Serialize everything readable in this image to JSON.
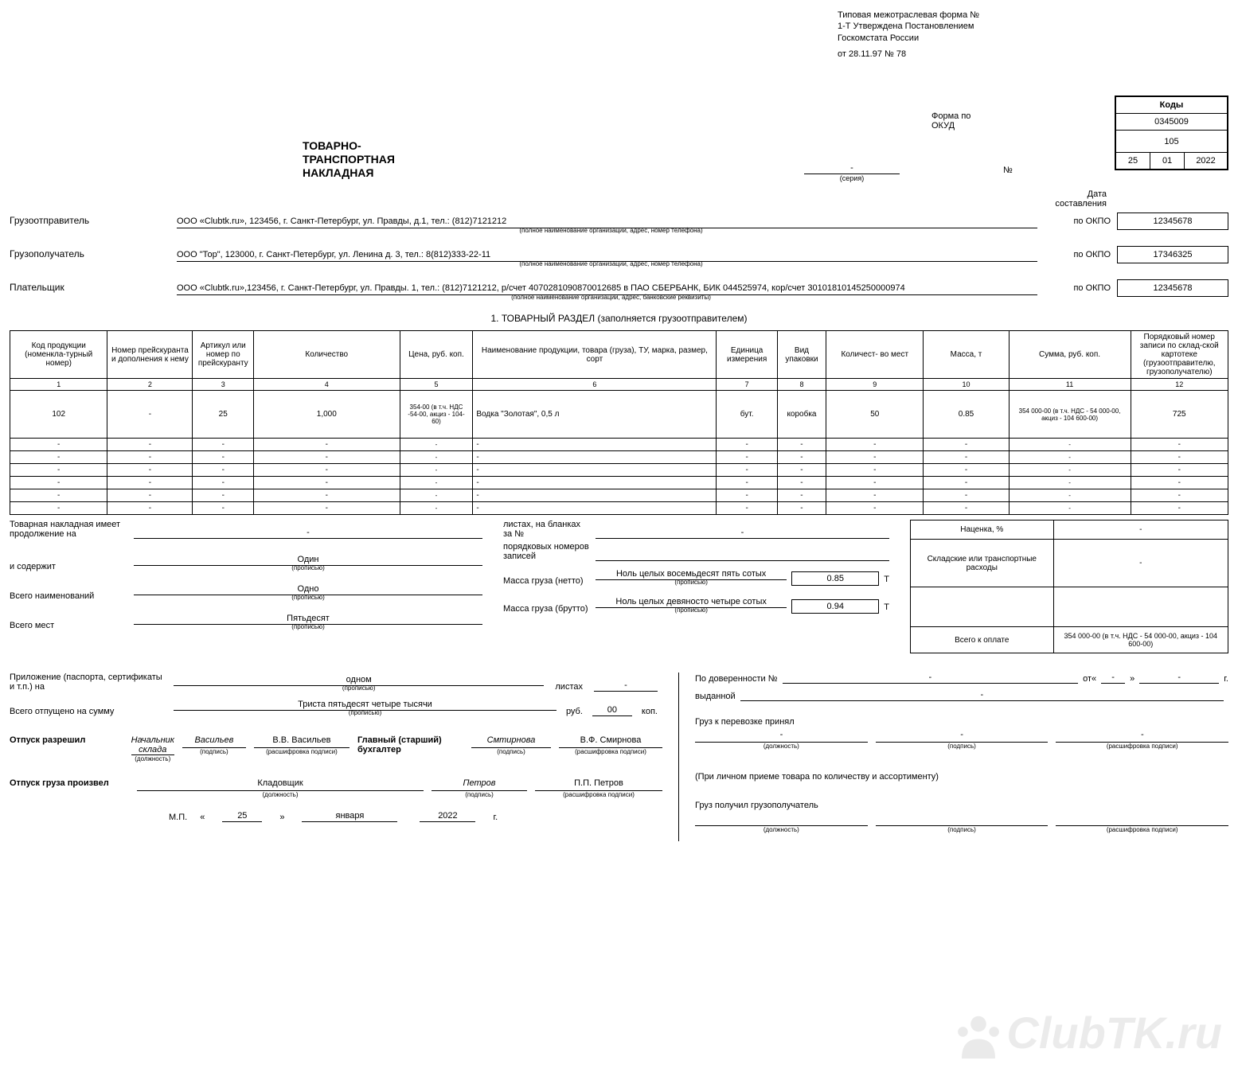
{
  "header": {
    "form_text": "Типовая межотраслевая форма № 1-Т Утверждена Постановлением Госкомстата России",
    "form_date": "от 28.11.97 № 78",
    "forma_label": "Форма по ОКУД",
    "number_label": "№",
    "series_caption": "(серия)",
    "date_label": "Дата составления",
    "codes_title": "Коды",
    "okud_code": "0345009",
    "doc_number": "105",
    "date_day": "25",
    "date_month": "01",
    "date_year": "2022"
  },
  "title": "ТОВАРНО-\nТРАНСПОРТНАЯ\nНАКЛАДНАЯ",
  "parties": {
    "sender_label": "Грузоотправитель",
    "sender_value": "ООО «Clubtk.ru», 123456, г. Санкт-Петербург, ул. Правды, д.1, тел.: (812)7121212",
    "sender_caption": "(полное наименование организации, адрес, номер телефона)",
    "sender_okpo": "12345678",
    "receiver_label": "Грузополучатель",
    "receiver_value": "ООО \"Тор\", 123000, г. Санкт-Петербург, ул. Ленина д. 3, тел.: 8(812)333-22-11",
    "receiver_caption": "(полное наименование организации, адрес, номер телефона)",
    "receiver_okpo": "17346325",
    "payer_label": "Плательщик",
    "payer_value": "ООО «Clubtk.ru»,123456, г. Санкт-Петербург, ул. Правды. 1, тел.: (812)7121212, р/счет 4070281090870012685 в ПАО СБЕРБАНК, БИК 044525974, кор/счет 30101810145250000974",
    "payer_caption": "(полное наименование организации, адрес, банковские реквизиты)",
    "payer_okpo": "12345678",
    "okpo_label": "по ОКПО"
  },
  "section1_title": "1. ТОВАРНЫЙ РАЗДЕЛ (заполняется грузоотправителем)",
  "table": {
    "columns": [
      "Код продукции (номенкла-турный номер)",
      "Номер прейскуранта и дополнения к нему",
      "Артикул или номер по прейскуранту",
      "Количество",
      "Цена, руб. коп.",
      "Наименование продукции, товара (груза), ТУ, марка, размер, сорт",
      "Единица измерения",
      "Вид упаковки",
      "Количест- во мест",
      "Масса, т",
      "Сумма, руб. коп.",
      "Порядковый номер записи по склад-ской картотеке (грузоотправителю, грузополучателю)"
    ],
    "col_nums": [
      "1",
      "2",
      "3",
      "4",
      "5",
      "6",
      "7",
      "8",
      "9",
      "10",
      "11",
      "12"
    ],
    "rows": [
      [
        "102",
        "-",
        "25",
        "1,000",
        "354-00 (в т.ч. НДС -54-00, акциз - 104-60)",
        "Водка \"Золотая\", 0,5 л",
        "бут.",
        "коробка",
        "50",
        "0.85",
        "354 000-00 (в т.ч. НДС - 54 000-00, акциз - 104 600-00)",
        "725"
      ],
      [
        "-",
        "-",
        "-",
        "-",
        "-",
        "-",
        "-",
        "-",
        "-",
        "-",
        "-",
        "-"
      ],
      [
        "-",
        "-",
        "-",
        "-",
        "-",
        "-",
        "-",
        "-",
        "-",
        "-",
        "-",
        "-"
      ],
      [
        "-",
        "-",
        "-",
        "-",
        "-",
        "-",
        "-",
        "-",
        "-",
        "-",
        "-",
        "-"
      ],
      [
        "-",
        "-",
        "-",
        "-",
        "-",
        "-",
        "-",
        "-",
        "-",
        "-",
        "-",
        "-"
      ],
      [
        "-",
        "-",
        "-",
        "-",
        "-",
        "-",
        "-",
        "-",
        "-",
        "-",
        "-",
        "-"
      ],
      [
        "-",
        "-",
        "-",
        "-",
        "-",
        "-",
        "-",
        "-",
        "-",
        "-",
        "-",
        "-"
      ]
    ],
    "col_widths": [
      "8%",
      "7%",
      "5%",
      "12%",
      "6%",
      "20%",
      "5%",
      "4%",
      "8%",
      "7%",
      "10%",
      "8%"
    ]
  },
  "footer": {
    "continuation_label": "Товарная накладная имеет продолжение на",
    "sheets_label": "листах, на бланках за №",
    "contains_label": "и содержит",
    "contains_value": "Один",
    "records_label": "порядковых номеров записей",
    "names_label": "Всего наименований",
    "names_value": "Одно",
    "places_label": "Всего мест",
    "places_value": "Пятьдесят",
    "propisyu": "(прописью)",
    "netto_label": "Масса груза (нетто)",
    "netto_words": "Ноль целых восемьдесят пять сотых",
    "netto_value": "0.85",
    "brutto_label": "Масса груза (брутто)",
    "brutto_words": "Ноль целых девяносто четыре сотых",
    "brutto_value": "0.94",
    "t_label": "Т",
    "markup_label": "Наценка, %",
    "markup_value": "-",
    "transport_label": "Складские или транспортные расходы",
    "transport_value": "-",
    "total_label": "Всего к оплате",
    "total_value": "354 000-00 (в т.ч. НДС - 54 000-00, акциз - 104 600-00)"
  },
  "appendix": {
    "appendix_label": "Приложение (паспорта, сертификаты и т.п.) на",
    "appendix_value": "одном",
    "sheets2": "листах",
    "released_label": "Всего отпущено на сумму",
    "released_value": "Триста пятьдесят четыре тысячи",
    "rub": "руб.",
    "kop_value": "00",
    "kop": "коп."
  },
  "signatures": {
    "permit_label": "Отпуск разрешил",
    "permit_position": "Начальник склада",
    "permit_sign": "Васильев",
    "permit_name": "В.В. Васильев",
    "accountant_label": "Главный (старший) бухгалтер",
    "accountant_sign": "Смтирнова",
    "accountant_name": "В.Ф. Смирнова",
    "released_label": "Отпуск груза произвел",
    "released_position": "Кладовщик",
    "released_sign": "Петров",
    "released_name": "П.П. Петров",
    "mp": "М.П.",
    "date_day": "25",
    "date_month": "января",
    "date_year": "2022",
    "year_suffix": "г.",
    "position_cap": "(должность)",
    "sign_cap": "(подпись)",
    "name_cap": "(расшифровка подписи)",
    "proxy_label": "По доверенности №",
    "proxy_from": "от",
    "issued_label": "выданной",
    "accepted_label": "Груз к перевозке принял",
    "personal_label": "(При личном приеме товара по количеству и ассортименту)",
    "received_label": "Груз получил грузополучатель"
  },
  "watermark": "ClubTK.ru",
  "colors": {
    "background": "#ffffff",
    "text": "#000000",
    "border": "#000000",
    "watermark": "rgba(0,0,0,0.08)"
  }
}
